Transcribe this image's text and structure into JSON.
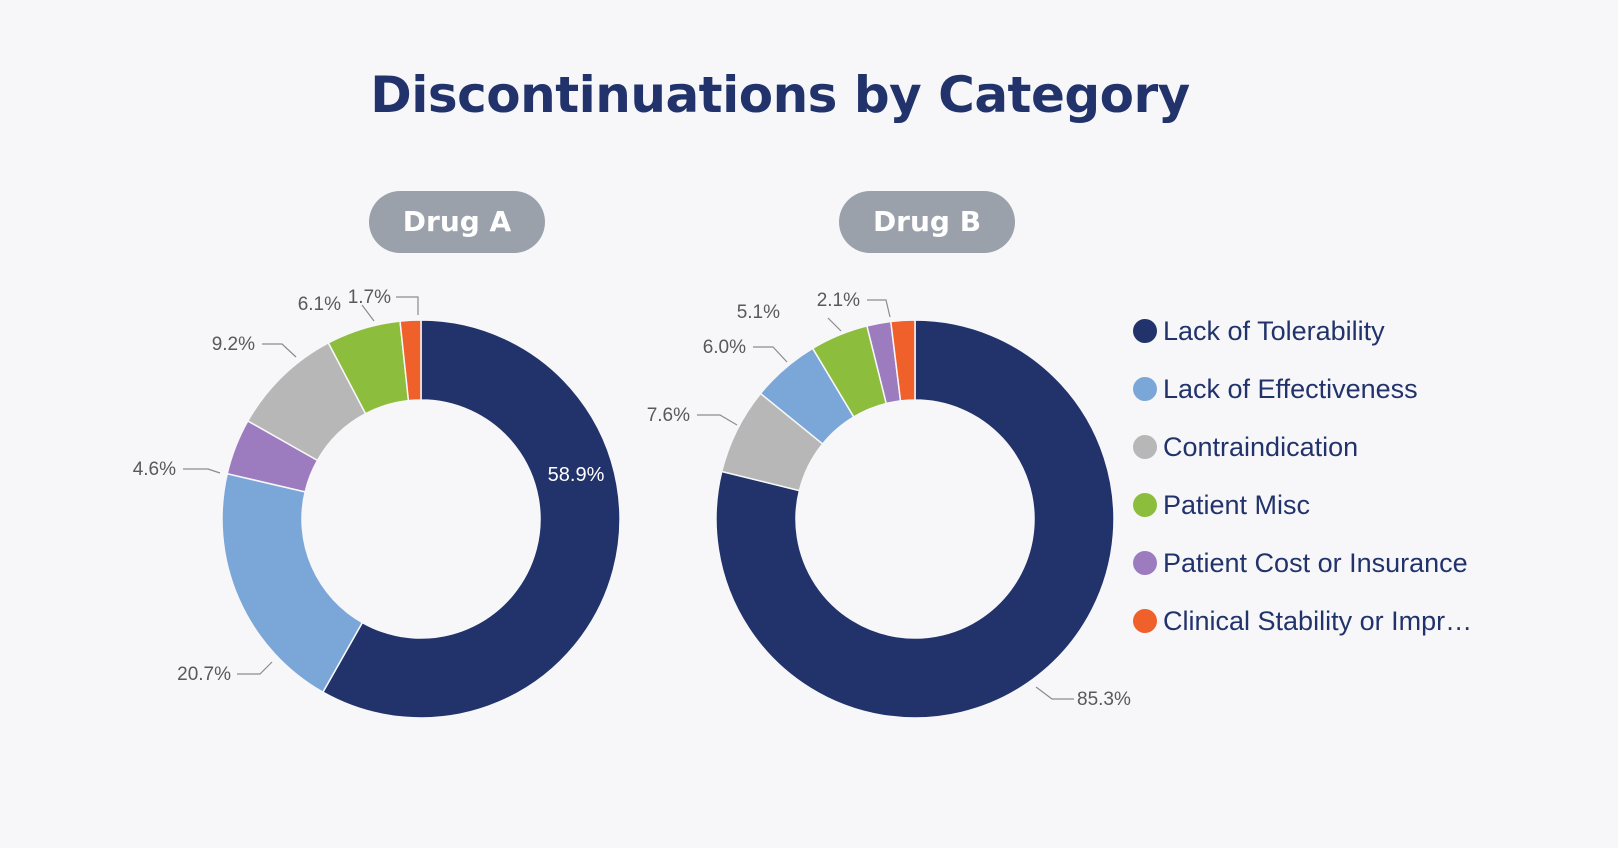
{
  "chart_data": [
    {
      "type": "pie",
      "subtype": "donut",
      "title": "Discontinuations by Category",
      "subtitle": "Drug A",
      "categories": [
        "Lack of Tolerability",
        "Lack of Effectiveness",
        "Contraindication",
        "Patient Misc",
        "Patient Cost or Insurance",
        "Clinical Stability or Impr..."
      ],
      "values": [
        58.9,
        20.7,
        9.2,
        6.1,
        4.6,
        1.7
      ],
      "order": [
        0,
        1,
        4,
        2,
        3,
        5
      ],
      "labels": [
        "58.9%",
        "20.7%",
        "9.2%",
        "6.1%",
        "4.6%",
        "1.7%"
      ],
      "legend": "right"
    },
    {
      "type": "pie",
      "subtype": "donut",
      "title": "Discontinuations by Category",
      "subtitle": "Drug B",
      "categories": [
        "Lack of Tolerability",
        "Lack of Effectiveness",
        "Contraindication",
        "Patient Misc",
        "Patient Cost or Insurance",
        "Clinical Stability or Impr..."
      ],
      "values": [
        85.3,
        6.0,
        7.6,
        5.1,
        2.1,
        2.1
      ],
      "order": [
        0,
        2,
        1,
        3,
        4,
        5
      ],
      "labels": [
        "85.3%",
        "6.0%",
        "7.6%",
        "5.1%",
        "2.1%",
        ""
      ],
      "legend": "right"
    }
  ],
  "page": {
    "title": "Discontinuations by Category"
  },
  "panels": [
    {
      "label": "Drug A"
    },
    {
      "label": "Drug B"
    }
  ],
  "legend": {
    "items": [
      {
        "label": "Lack of Tolerability",
        "color": "#22336b"
      },
      {
        "label": "Lack of Effectiveness",
        "color": "#7ba7d8"
      },
      {
        "label": "Contraindication",
        "color": "#b7b7b7"
      },
      {
        "label": "Patient Misc",
        "color": "#8dbd3c"
      },
      {
        "label": "Patient Cost or Insurance",
        "color": "#9c7cbf"
      },
      {
        "label": "Clinical Stability or Impr…",
        "color": "#f0602a"
      }
    ]
  }
}
